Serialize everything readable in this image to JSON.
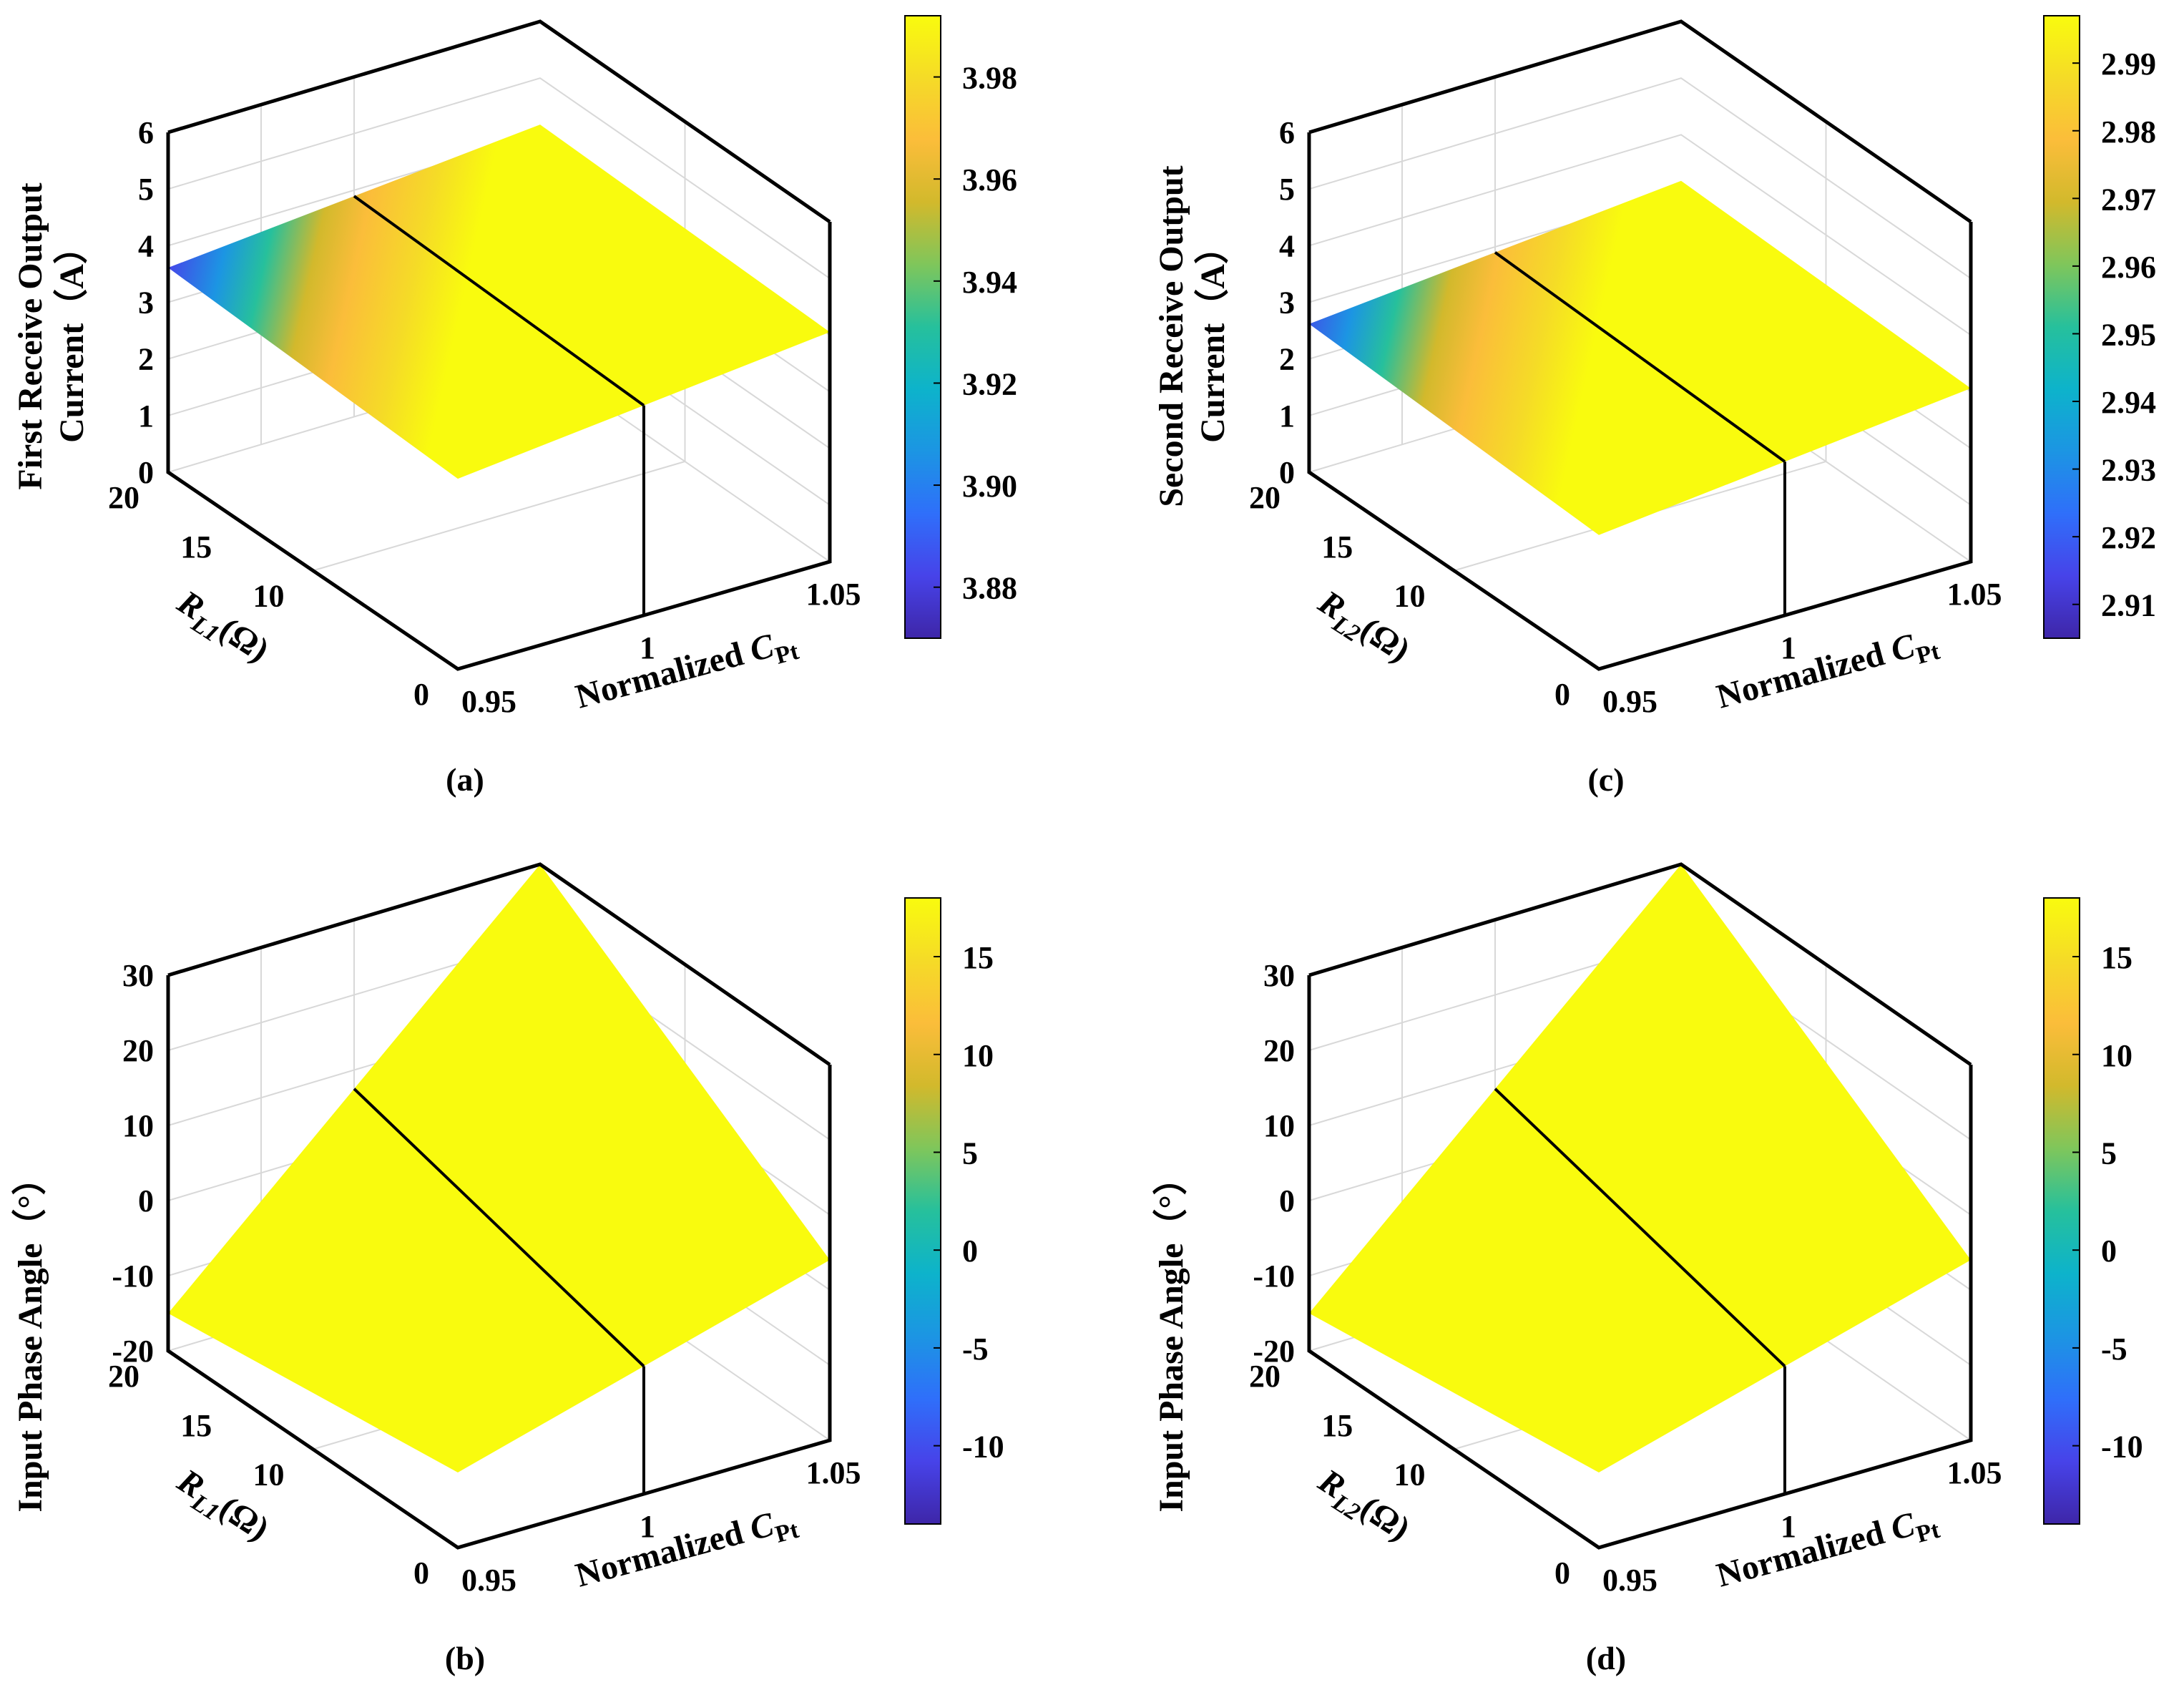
{
  "chart_data": [
    {
      "type": "surface",
      "caption": "(a)",
      "zlabel_lines": [
        "First Receive Output",
        "Current（A）"
      ],
      "xlabel_parts": {
        "main": "Normalized ",
        "sym": "C",
        "sub": "Pt"
      },
      "ylabel_parts": {
        "sym": "R",
        "sub": "L1",
        "unit": "(Ω)"
      },
      "x_range": [
        0.95,
        1.05
      ],
      "y_range": [
        0,
        20
      ],
      "z_range": [
        0,
        6
      ],
      "x_ticks": [
        "0.95",
        "1",
        "1.05"
      ],
      "y_ticks": [
        "0",
        "10",
        "15",
        "20"
      ],
      "z_ticks": [
        "0",
        "1",
        "2",
        "3",
        "4",
        "5",
        "6"
      ],
      "colorbar_range": [
        3.87,
        3.992
      ],
      "colorbar_ticks": [
        "3.88",
        "3.90",
        "3.92",
        "3.94",
        "3.96",
        "3.98"
      ],
      "surface_z": {
        "min": 3.87,
        "max": 3.99,
        "note": "max near Normalized CPt = 1, drops at low CPt with high R"
      }
    },
    {
      "type": "surface",
      "caption": "(b)",
      "zlabel_lines": [
        "Input Phase Angle（°）"
      ],
      "xlabel_parts": {
        "main": "Normalized ",
        "sym": "C",
        "sub": "Pt"
      },
      "ylabel_parts": {
        "sym": "R",
        "sub": "L1",
        "unit": "(Ω)"
      },
      "x_range": [
        0.95,
        1.05
      ],
      "y_range": [
        0,
        20
      ],
      "z_range": [
        -20,
        30
      ],
      "x_ticks": [
        "0.95",
        "1",
        "1.05"
      ],
      "y_ticks": [
        "0",
        "10",
        "15",
        "20"
      ],
      "z_ticks": [
        "-20",
        "-10",
        "0",
        "10",
        "20",
        "30"
      ],
      "colorbar_range": [
        -14,
        18
      ],
      "colorbar_ticks": [
        "-10",
        "-5",
        "0",
        "5",
        "10",
        "15"
      ],
      "surface_z": {
        "min": -14,
        "max": 18,
        "note": "increases with R, phase angle ≈ 0 at CPt = 1"
      }
    },
    {
      "type": "surface",
      "caption": "(c)",
      "zlabel_lines": [
        "Second Receive Output",
        "Current（A）"
      ],
      "xlabel_parts": {
        "main": "Normalized ",
        "sym": "C",
        "sub": "Pt"
      },
      "ylabel_parts": {
        "sym": "R",
        "sub": "L2",
        "unit": "(Ω)"
      },
      "x_range": [
        0.95,
        1.05
      ],
      "y_range": [
        0,
        20
      ],
      "z_range": [
        0,
        6
      ],
      "x_ticks": [
        "0.95",
        "1",
        "1.05"
      ],
      "y_ticks": [
        "0",
        "10",
        "15",
        "20"
      ],
      "z_ticks": [
        "0",
        "1",
        "2",
        "3",
        "4",
        "5",
        "6"
      ],
      "colorbar_range": [
        2.905,
        2.997
      ],
      "colorbar_ticks": [
        "2.91",
        "2.92",
        "2.93",
        "2.94",
        "2.95",
        "2.96",
        "2.97",
        "2.98",
        "2.99"
      ],
      "surface_z": {
        "min": 2.905,
        "max": 2.997,
        "note": "max near Normalized CPt = 1"
      }
    },
    {
      "type": "surface",
      "caption": "(d)",
      "zlabel_lines": [
        "Input Phase Angle（°）"
      ],
      "xlabel_parts": {
        "main": "Normalized ",
        "sym": "C",
        "sub": "Pt"
      },
      "ylabel_parts": {
        "sym": "R",
        "sub": "L2",
        "unit": "(Ω)"
      },
      "x_range": [
        0.95,
        1.05
      ],
      "y_range": [
        0,
        20
      ],
      "z_range": [
        -20,
        30
      ],
      "x_ticks": [
        "0.95",
        "1",
        "1.05"
      ],
      "y_ticks": [
        "0",
        "10",
        "15",
        "20"
      ],
      "z_ticks": [
        "-20",
        "-10",
        "0",
        "10",
        "20",
        "30"
      ],
      "colorbar_range": [
        -14,
        18
      ],
      "colorbar_ticks": [
        "-10",
        "-5",
        "0",
        "5",
        "10",
        "15"
      ],
      "surface_z": {
        "min": -14,
        "max": 18,
        "note": "increases with R, phase angle ≈ 0 at CPt = 1"
      }
    }
  ],
  "colors": {
    "parula": [
      "#3e26a8",
      "#4743e9",
      "#2f6ffa",
      "#1c95e3",
      "#0db3cb",
      "#26c09c",
      "#7fc65b",
      "#d2b92c",
      "#fbbd3a",
      "#f5db27",
      "#f9fb0e"
    ]
  }
}
